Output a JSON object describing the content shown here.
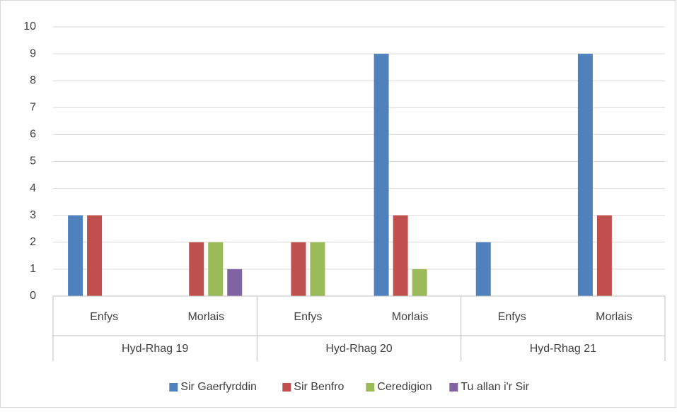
{
  "chart_data": {
    "type": "bar",
    "groups": [
      "Hyd-Rhag 19",
      "Hyd-Rhag 20",
      "Hyd-Rhag 21"
    ],
    "categories": [
      "Enfys",
      "Morlais",
      "Enfys",
      "Morlais",
      "Enfys",
      "Morlais"
    ],
    "series": [
      {
        "name": "Sir Gaerfyrddin",
        "color": "#4f81bd",
        "values": [
          3,
          0,
          0,
          9,
          2,
          9
        ]
      },
      {
        "name": "Sir Benfro",
        "color": "#c0504d",
        "values": [
          3,
          2,
          2,
          3,
          0,
          3
        ]
      },
      {
        "name": "Ceredigion",
        "color": "#9bbb59",
        "values": [
          0,
          2,
          2,
          1,
          0,
          0
        ]
      },
      {
        "name": "Tu allan i'r Sir",
        "color": "#8064a2",
        "values": [
          0,
          1,
          0,
          0,
          0,
          0
        ]
      }
    ],
    "ylim": [
      0,
      10
    ],
    "yticks": [
      0,
      1,
      2,
      3,
      4,
      5,
      6,
      7,
      8,
      9,
      10
    ],
    "grid": true,
    "legend": "bottom"
  }
}
